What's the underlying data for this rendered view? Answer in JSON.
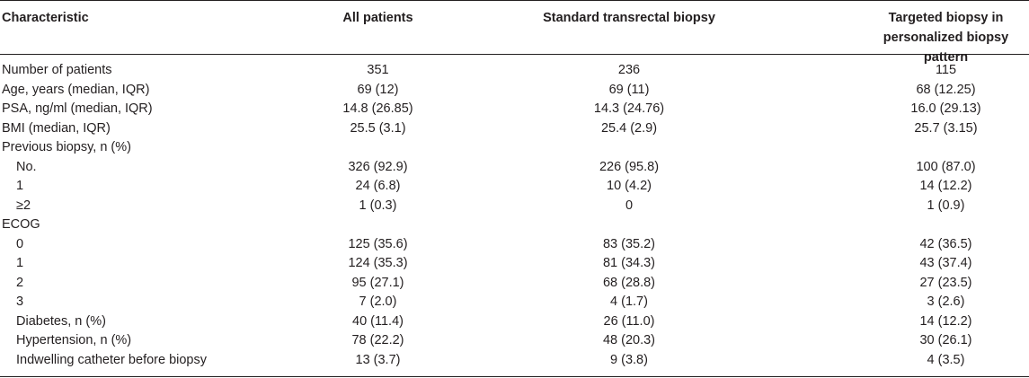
{
  "table": {
    "headers": {
      "characteristic": "Characteristic",
      "all_patients": "All patients",
      "standard": "Standard transrectal biopsy",
      "targeted_line1": "Targeted biopsy in",
      "targeted_line2": "personalized biopsy pattern"
    },
    "rows": [
      {
        "label": "Number of patients",
        "all": "351",
        "std": "236",
        "tgt": "115"
      },
      {
        "label": "Age, years (median, IQR)",
        "all": "69 (12)",
        "std": "69 (11)",
        "tgt": "68 (12.25)"
      },
      {
        "label": "PSA, ng/ml (median, IQR)",
        "all": "14.8 (26.85)",
        "std": "14.3 (24.76)",
        "tgt": "16.0 (29.13)"
      },
      {
        "label": "BMI (median, IQR)",
        "all": "25.5 (3.1)",
        "std": "25.4 (2.9)",
        "tgt": "25.7 (3.15)"
      },
      {
        "label": "Previous biopsy, n (%)",
        "all": "",
        "std": "",
        "tgt": ""
      },
      {
        "label": "No.",
        "all": "326 (92.9)",
        "std": "226 (95.8)",
        "tgt": "100 (87.0)"
      },
      {
        "label": "1",
        "all": "24 (6.8)",
        "std": "10 (4.2)",
        "tgt": "14 (12.2)"
      },
      {
        "label": "≥2",
        "all": "1 (0.3)",
        "std": "0",
        "tgt": "1 (0.9)"
      },
      {
        "label": "ECOG",
        "all": "",
        "std": "",
        "tgt": ""
      },
      {
        "label": "0",
        "all": "125 (35.6)",
        "std": "83 (35.2)",
        "tgt": "42 (36.5)"
      },
      {
        "label": "1",
        "all": "124 (35.3)",
        "std": "81 (34.3)",
        "tgt": "43 (37.4)"
      },
      {
        "label": "2",
        "all": "95 (27.1)",
        "std": "68 (28.8)",
        "tgt": "27 (23.5)"
      },
      {
        "label": "3",
        "all": "7 (2.0)",
        "std": "4 (1.7)",
        "tgt": "3 (2.6)"
      },
      {
        "label": "Diabetes, n (%)",
        "all": "40 (11.4)",
        "std": "26 (11.0)",
        "tgt": "14 (12.2)"
      },
      {
        "label": "Hypertension, n (%)",
        "all": "78 (22.2)",
        "std": "48 (20.3)",
        "tgt": "30 (26.1)"
      },
      {
        "label": "Indwelling catheter before biopsy",
        "all": "13 (3.7)",
        "std": "9 (3.8)",
        "tgt": "4 (3.5)"
      }
    ]
  }
}
